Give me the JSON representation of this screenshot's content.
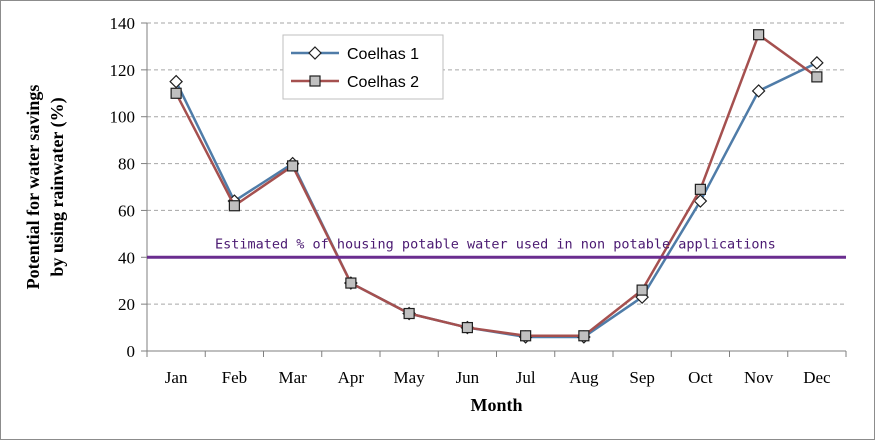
{
  "chart_data": {
    "type": "line",
    "title": "",
    "xlabel": "Month",
    "ylabel_lines": [
      "Potential for water savings",
      "by using rainwater  (%)"
    ],
    "categories": [
      "Jan",
      "Feb",
      "Mar",
      "Apr",
      "May",
      "Jun",
      "Jul",
      "Aug",
      "Sep",
      "Oct",
      "Nov",
      "Dec"
    ],
    "ylim": [
      0,
      140
    ],
    "yticks": [
      0,
      20,
      40,
      60,
      80,
      100,
      120,
      140
    ],
    "grid": true,
    "legend_position": "top-center",
    "series": [
      {
        "name": "Coelhas 1",
        "marker": "diamond",
        "color": "#4f7ca8",
        "values": [
          115,
          64,
          80,
          29,
          16,
          10,
          6,
          6,
          23,
          64,
          111,
          123
        ]
      },
      {
        "name": "Coelhas 2",
        "marker": "square",
        "color": "#a5504f",
        "values": [
          110,
          62,
          79,
          29,
          16,
          10,
          6.5,
          6.5,
          26,
          69,
          135,
          117
        ]
      }
    ],
    "reference_line": {
      "value": 40,
      "color": "#6a2d8f",
      "label": "Estimated  % of housing potable water  used in non potable applications"
    }
  }
}
